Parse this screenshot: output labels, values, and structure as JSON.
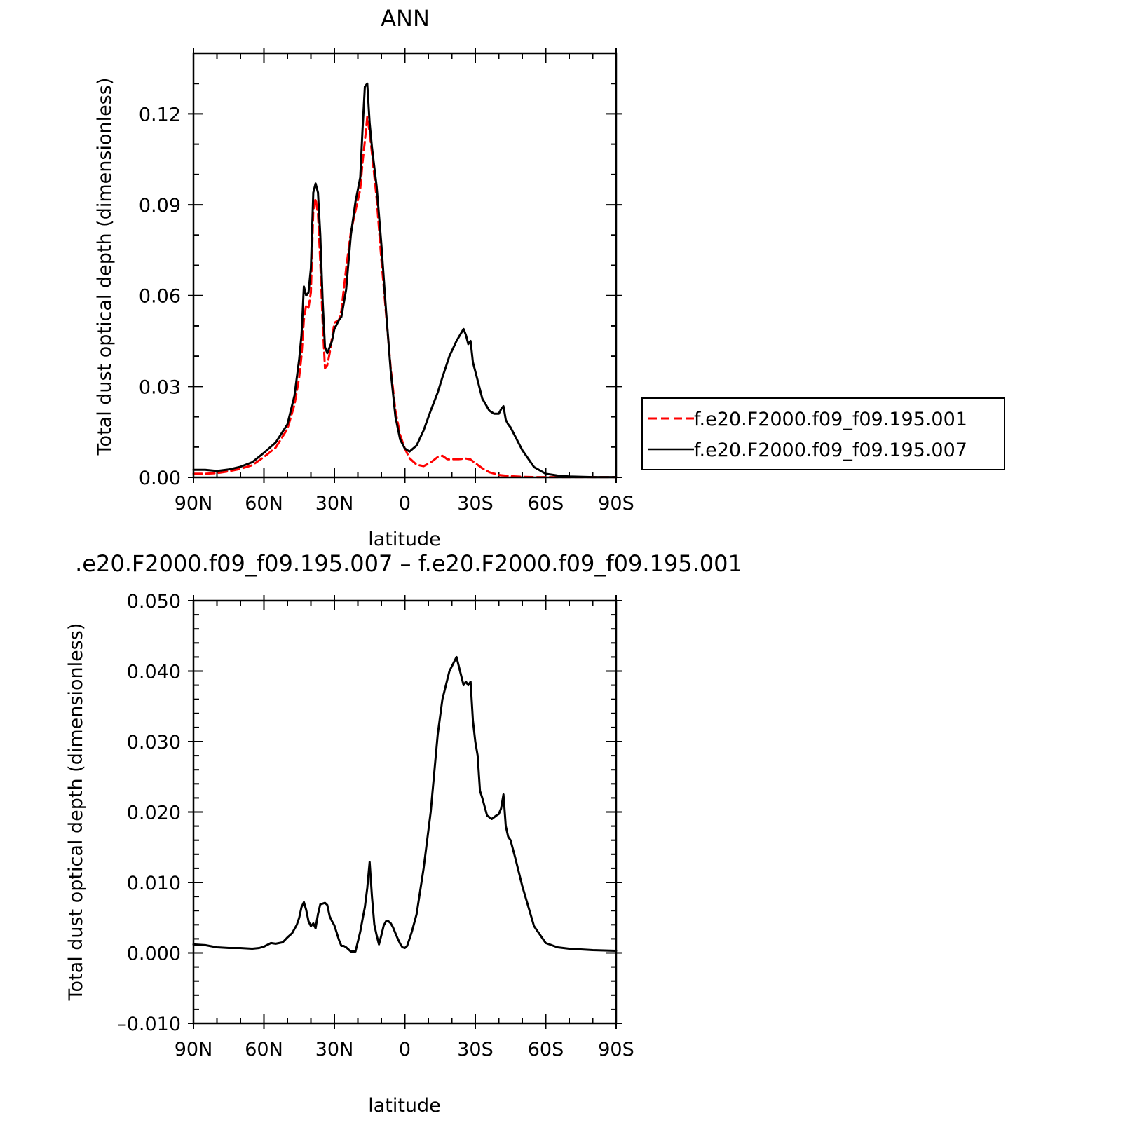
{
  "chart_data": [
    {
      "type": "line",
      "title": "ANN",
      "xlabel": "latitude",
      "ylabel": "Total dust optical depth (dimensionless)",
      "xlim": [
        90,
        -90
      ],
      "ylim": [
        0,
        0.14
      ],
      "x_ticks": [
        "90N",
        "60N",
        "30N",
        "0",
        "30S",
        "60S",
        "90S"
      ],
      "y_ticks": [
        "0.00",
        "0.03",
        "0.06",
        "0.09",
        "0.12"
      ],
      "grid": false,
      "legend": "right",
      "series": [
        {
          "name": "f.e20.F2000.f09_f09.195.001",
          "color": "#ff0000",
          "dash": "dashed",
          "x": [
            90,
            85,
            80,
            75,
            70,
            65,
            60,
            55,
            50,
            47,
            45,
            44,
            43,
            42,
            41,
            40,
            39,
            38,
            37,
            36,
            35,
            34,
            33,
            32,
            31,
            30,
            28,
            27,
            25,
            23,
            21,
            19,
            18,
            17,
            16,
            15,
            14,
            12,
            10,
            8,
            6,
            4,
            2,
            0,
            -2,
            -5,
            -8,
            -11,
            -14,
            -16,
            -17,
            -18,
            -19,
            -21,
            -23,
            -25,
            -26,
            -28,
            -30,
            -33,
            -36,
            -40,
            -45,
            -50,
            -55,
            -60,
            -65,
            -70,
            -80,
            -90
          ],
          "y": [
            0.0012,
            0.0012,
            0.0014,
            0.002,
            0.0028,
            0.004,
            0.0067,
            0.0098,
            0.016,
            0.024,
            0.033,
            0.04,
            0.052,
            0.057,
            0.056,
            0.061,
            0.088,
            0.092,
            0.087,
            0.071,
            0.051,
            0.036,
            0.037,
            0.041,
            0.046,
            0.051,
            0.052,
            0.055,
            0.069,
            0.081,
            0.088,
            0.095,
            0.104,
            0.111,
            0.119,
            0.114,
            0.107,
            0.092,
            0.072,
            0.054,
            0.036,
            0.022,
            0.014,
            0.0095,
            0.0063,
            0.0042,
            0.0037,
            0.0049,
            0.0067,
            0.0071,
            0.0066,
            0.006,
            0.0059,
            0.006,
            0.006,
            0.0061,
            0.0062,
            0.0059,
            0.0047,
            0.003,
            0.0017,
            0.0008,
            0.0004,
            0.0002,
            0.0001,
            0.0001,
            0.0001,
            0.0001,
            0.0001,
            0.0001
          ]
        },
        {
          "name": "f.e20.F2000.f09_f09.195.007",
          "color": "#000000",
          "dash": "solid",
          "x": [
            90,
            85,
            80,
            75,
            70,
            65,
            60,
            55,
            50,
            47,
            45,
            44,
            43,
            42,
            41,
            40,
            39,
            38,
            37,
            36,
            35,
            34,
            33,
            32,
            31,
            30,
            28,
            27,
            25,
            23,
            21,
            19,
            18,
            17,
            16,
            15,
            14,
            12,
            10,
            8,
            6,
            4,
            2,
            0,
            -2,
            -5,
            -8,
            -11,
            -14,
            -16,
            -19,
            -22,
            -25,
            -26,
            -27,
            -28,
            -29,
            -30,
            -31,
            -33,
            -36,
            -38,
            -40,
            -41,
            -42,
            -43,
            -44,
            -45,
            -47,
            -50,
            -55,
            -60,
            -65,
            -70,
            -80,
            -90
          ],
          "y": [
            0.0025,
            0.0025,
            0.0021,
            0.0026,
            0.0035,
            0.005,
            0.0081,
            0.0115,
            0.0175,
            0.027,
            0.039,
            0.047,
            0.063,
            0.06,
            0.061,
            0.069,
            0.094,
            0.097,
            0.094,
            0.08,
            0.058,
            0.043,
            0.041,
            0.043,
            0.045,
            0.049,
            0.052,
            0.053,
            0.062,
            0.08,
            0.091,
            0.099,
            0.115,
            0.129,
            0.13,
            0.117,
            0.109,
            0.096,
            0.077,
            0.055,
            0.035,
            0.02,
            0.0125,
            0.0095,
            0.0085,
            0.0105,
            0.0155,
            0.022,
            0.028,
            0.033,
            0.04,
            0.045,
            0.049,
            0.047,
            0.044,
            0.045,
            0.038,
            0.035,
            0.032,
            0.026,
            0.022,
            0.021,
            0.021,
            0.0225,
            0.0235,
            0.019,
            0.0175,
            0.0165,
            0.0135,
            0.009,
            0.0034,
            0.0012,
            0.0006,
            0.0003,
            0.0001,
            0.0001
          ]
        }
      ]
    },
    {
      "type": "line",
      "title": ".e20.F2000.f09_f09.195.007 – f.e20.F2000.f09_f09.195.001",
      "xlabel": "latitude",
      "ylabel": "Total dust optical depth (dimensionless)",
      "xlim": [
        90,
        -90
      ],
      "ylim": [
        -0.01,
        0.05
      ],
      "x_ticks": [
        "90N",
        "60N",
        "30N",
        "0",
        "30S",
        "60S",
        "90S"
      ],
      "y_ticks": [
        "–0.010",
        "0.000",
        "0.010",
        "0.020",
        "0.030",
        "0.040",
        "0.050"
      ],
      "grid": false,
      "series": [
        {
          "color": "#000000",
          "dash": "solid",
          "x": [
            90,
            85,
            80,
            75,
            70,
            65,
            62,
            60,
            57,
            55,
            52,
            50,
            48,
            46,
            45,
            44,
            43,
            42,
            41,
            40,
            39,
            38,
            37,
            36,
            35,
            34,
            33,
            32,
            31,
            30,
            28,
            27,
            26,
            25,
            24,
            23,
            21,
            19,
            18,
            17,
            16,
            15,
            14,
            13,
            12,
            11,
            10,
            9,
            8,
            7,
            6,
            5,
            4,
            3,
            2,
            1,
            0,
            -1,
            -2,
            -3,
            -5,
            -8,
            -11,
            -14,
            -16,
            -19,
            -22,
            -25,
            -26,
            -27,
            -28,
            -29,
            -30,
            -31,
            -32,
            -33,
            -35,
            -37,
            -39,
            -40,
            -41,
            -42,
            -43,
            -44,
            -45,
            -47,
            -50,
            -55,
            -60,
            -65,
            -70,
            -80,
            -90
          ],
          "y": [
            0.0012,
            0.0011,
            0.0008,
            0.0007,
            0.0007,
            0.0006,
            0.0007,
            0.0009,
            0.0014,
            0.0013,
            0.0015,
            0.0022,
            0.0028,
            0.004,
            0.005,
            0.0065,
            0.0072,
            0.0061,
            0.0045,
            0.0038,
            0.0042,
            0.0035,
            0.0055,
            0.0069,
            0.007,
            0.0071,
            0.0068,
            0.0052,
            0.0045,
            0.0039,
            0.0018,
            0.001,
            0.001,
            0.0008,
            0.0005,
            0.0002,
            0.0002,
            0.003,
            0.0048,
            0.0065,
            0.0092,
            0.0129,
            0.008,
            0.004,
            0.0025,
            0.0012,
            0.0025,
            0.0039,
            0.0045,
            0.0045,
            0.0042,
            0.0036,
            0.0028,
            0.002,
            0.0013,
            0.0008,
            0.0007,
            0.001,
            0.002,
            0.003,
            0.0055,
            0.012,
            0.02,
            0.031,
            0.036,
            0.04,
            0.042,
            0.038,
            0.0385,
            0.038,
            0.0385,
            0.033,
            0.03,
            0.028,
            0.023,
            0.022,
            0.0195,
            0.019,
            0.0195,
            0.0197,
            0.0205,
            0.0225,
            0.018,
            0.0165,
            0.016,
            0.0135,
            0.0095,
            0.0038,
            0.0014,
            0.0008,
            0.0006,
            0.0004,
            0.0003
          ]
        }
      ]
    }
  ]
}
